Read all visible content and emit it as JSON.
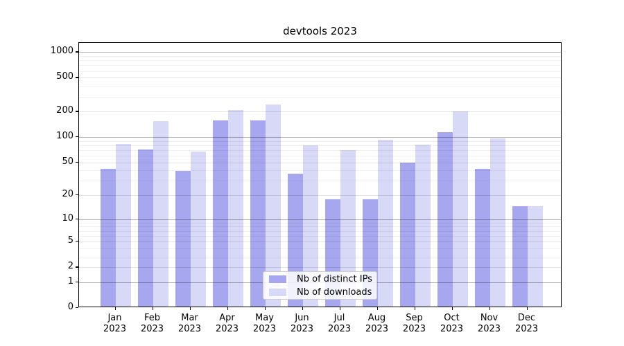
{
  "title": "devtools 2023",
  "legend": {
    "items": [
      {
        "label": "Nb of distinct IPs",
        "color": "#a7a7f0"
      },
      {
        "label": "Nb of downloads",
        "color": "#d8d8f7"
      }
    ]
  },
  "colors": {
    "distinct_ips_bar": "#a7a7f0",
    "downloads_bar": "#d8d8f7",
    "axis": "#000000",
    "grid_major": "rgba(0,0,0,0.30)",
    "grid_labeled": "rgba(0,0,0,0.11)",
    "grid_minor": "rgba(0,0,0,0.055)"
  },
  "chart_data": {
    "type": "bar",
    "title": "devtools 2023",
    "categories": [
      "Jan 2023",
      "Feb 2023",
      "Mar 2023",
      "Apr 2023",
      "May 2023",
      "Jun 2023",
      "Jul 2023",
      "Aug 2023",
      "Sep 2023",
      "Oct 2023",
      "Nov 2023",
      "Dec 2023"
    ],
    "series": [
      {
        "name": "Nb of distinct IPs",
        "color": "#a7a7f0",
        "values": [
          40,
          68,
          38,
          153,
          153,
          35,
          17,
          17,
          48,
          110,
          40,
          14
        ]
      },
      {
        "name": "Nb of downloads",
        "color": "#d8d8f7",
        "values": [
          80,
          150,
          65,
          200,
          232,
          77,
          67,
          90,
          78,
          194,
          93,
          14
        ]
      }
    ],
    "xlabel": "",
    "ylabel": "",
    "yscale": "log1p",
    "ylim": [
      0,
      1280
    ],
    "yticks": [
      0,
      1,
      2,
      5,
      10,
      20,
      50,
      100,
      200,
      500,
      1000
    ],
    "major_gridlines": [
      1,
      10,
      100,
      1000
    ],
    "labeled_gridlines": [
      2,
      5,
      20,
      50,
      200,
      500
    ],
    "minor_gridlines": [
      3,
      4,
      6,
      7,
      8,
      9,
      30,
      40,
      60,
      70,
      80,
      90,
      300,
      400,
      600,
      700,
      800,
      900
    ],
    "grid": "horizontal",
    "legend_position": "lower center"
  }
}
